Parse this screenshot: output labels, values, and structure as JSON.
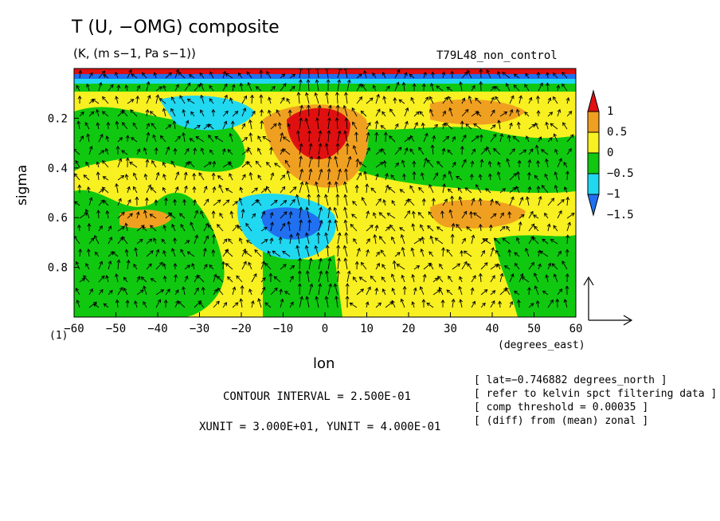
{
  "chart_data": {
    "type": "heatmap",
    "title": "T (U, −OMG) composite",
    "subtitle": "(K, (m s−1, Pa s−1))",
    "experiment": "T79L48_non_control",
    "xlabel": "lon",
    "xunit_label": "(degrees_east)",
    "ylabel": "sigma",
    "y_corner_label": "(1)",
    "xlim": [
      -60,
      60
    ],
    "ylim": [
      1.0,
      0.0
    ],
    "x_ticks": [
      -60,
      -50,
      -40,
      -30,
      -20,
      -10,
      0,
      10,
      20,
      30,
      40,
      50,
      60
    ],
    "y_ticks": [
      0.2,
      0.4,
      0.6,
      0.8
    ],
    "colorbar": {
      "levels": [
        1,
        0.5,
        0,
        -0.5,
        -1,
        -1.5
      ],
      "tick_labels": [
        "1",
        "0.5",
        "0",
        "−0.5",
        "−1",
        "−1.5"
      ],
      "colors": [
        "#e01010",
        "#f0a020",
        "#f8f020",
        "#10c810",
        "#20d8f0",
        "#2070f0"
      ]
    },
    "regions": [
      {
        "desc": "warm core",
        "lon": [
          -5,
          5
        ],
        "sigma": [
          0.2,
          0.3
        ],
        "value": 1.0
      },
      {
        "desc": "cold anomaly",
        "lon": [
          -20,
          0
        ],
        "sigma": [
          0.55,
          0.7
        ],
        "value": -1.0
      },
      {
        "desc": "cold anomaly upper",
        "lon": [
          -40,
          -20
        ],
        "sigma": [
          0.12,
          0.2
        ],
        "value": -0.5
      },
      {
        "desc": "warm band east",
        "lon": [
          20,
          45
        ],
        "sigma": [
          0.58,
          0.62
        ],
        "value": 0.5
      }
    ]
  },
  "info": {
    "contour_interval": "CONTOUR INTERVAL = 2.500E-01",
    "units": "XUNIT = 3.000E+01, YUNIT = 4.000E-01",
    "notes": [
      "[ lat=−0.746882 degrees_north ]",
      "[ refer to kelvin spct filtering data ]",
      "[ comp threshold = 0.00035 ]",
      "[ (diff) from (mean) zonal ]"
    ]
  }
}
